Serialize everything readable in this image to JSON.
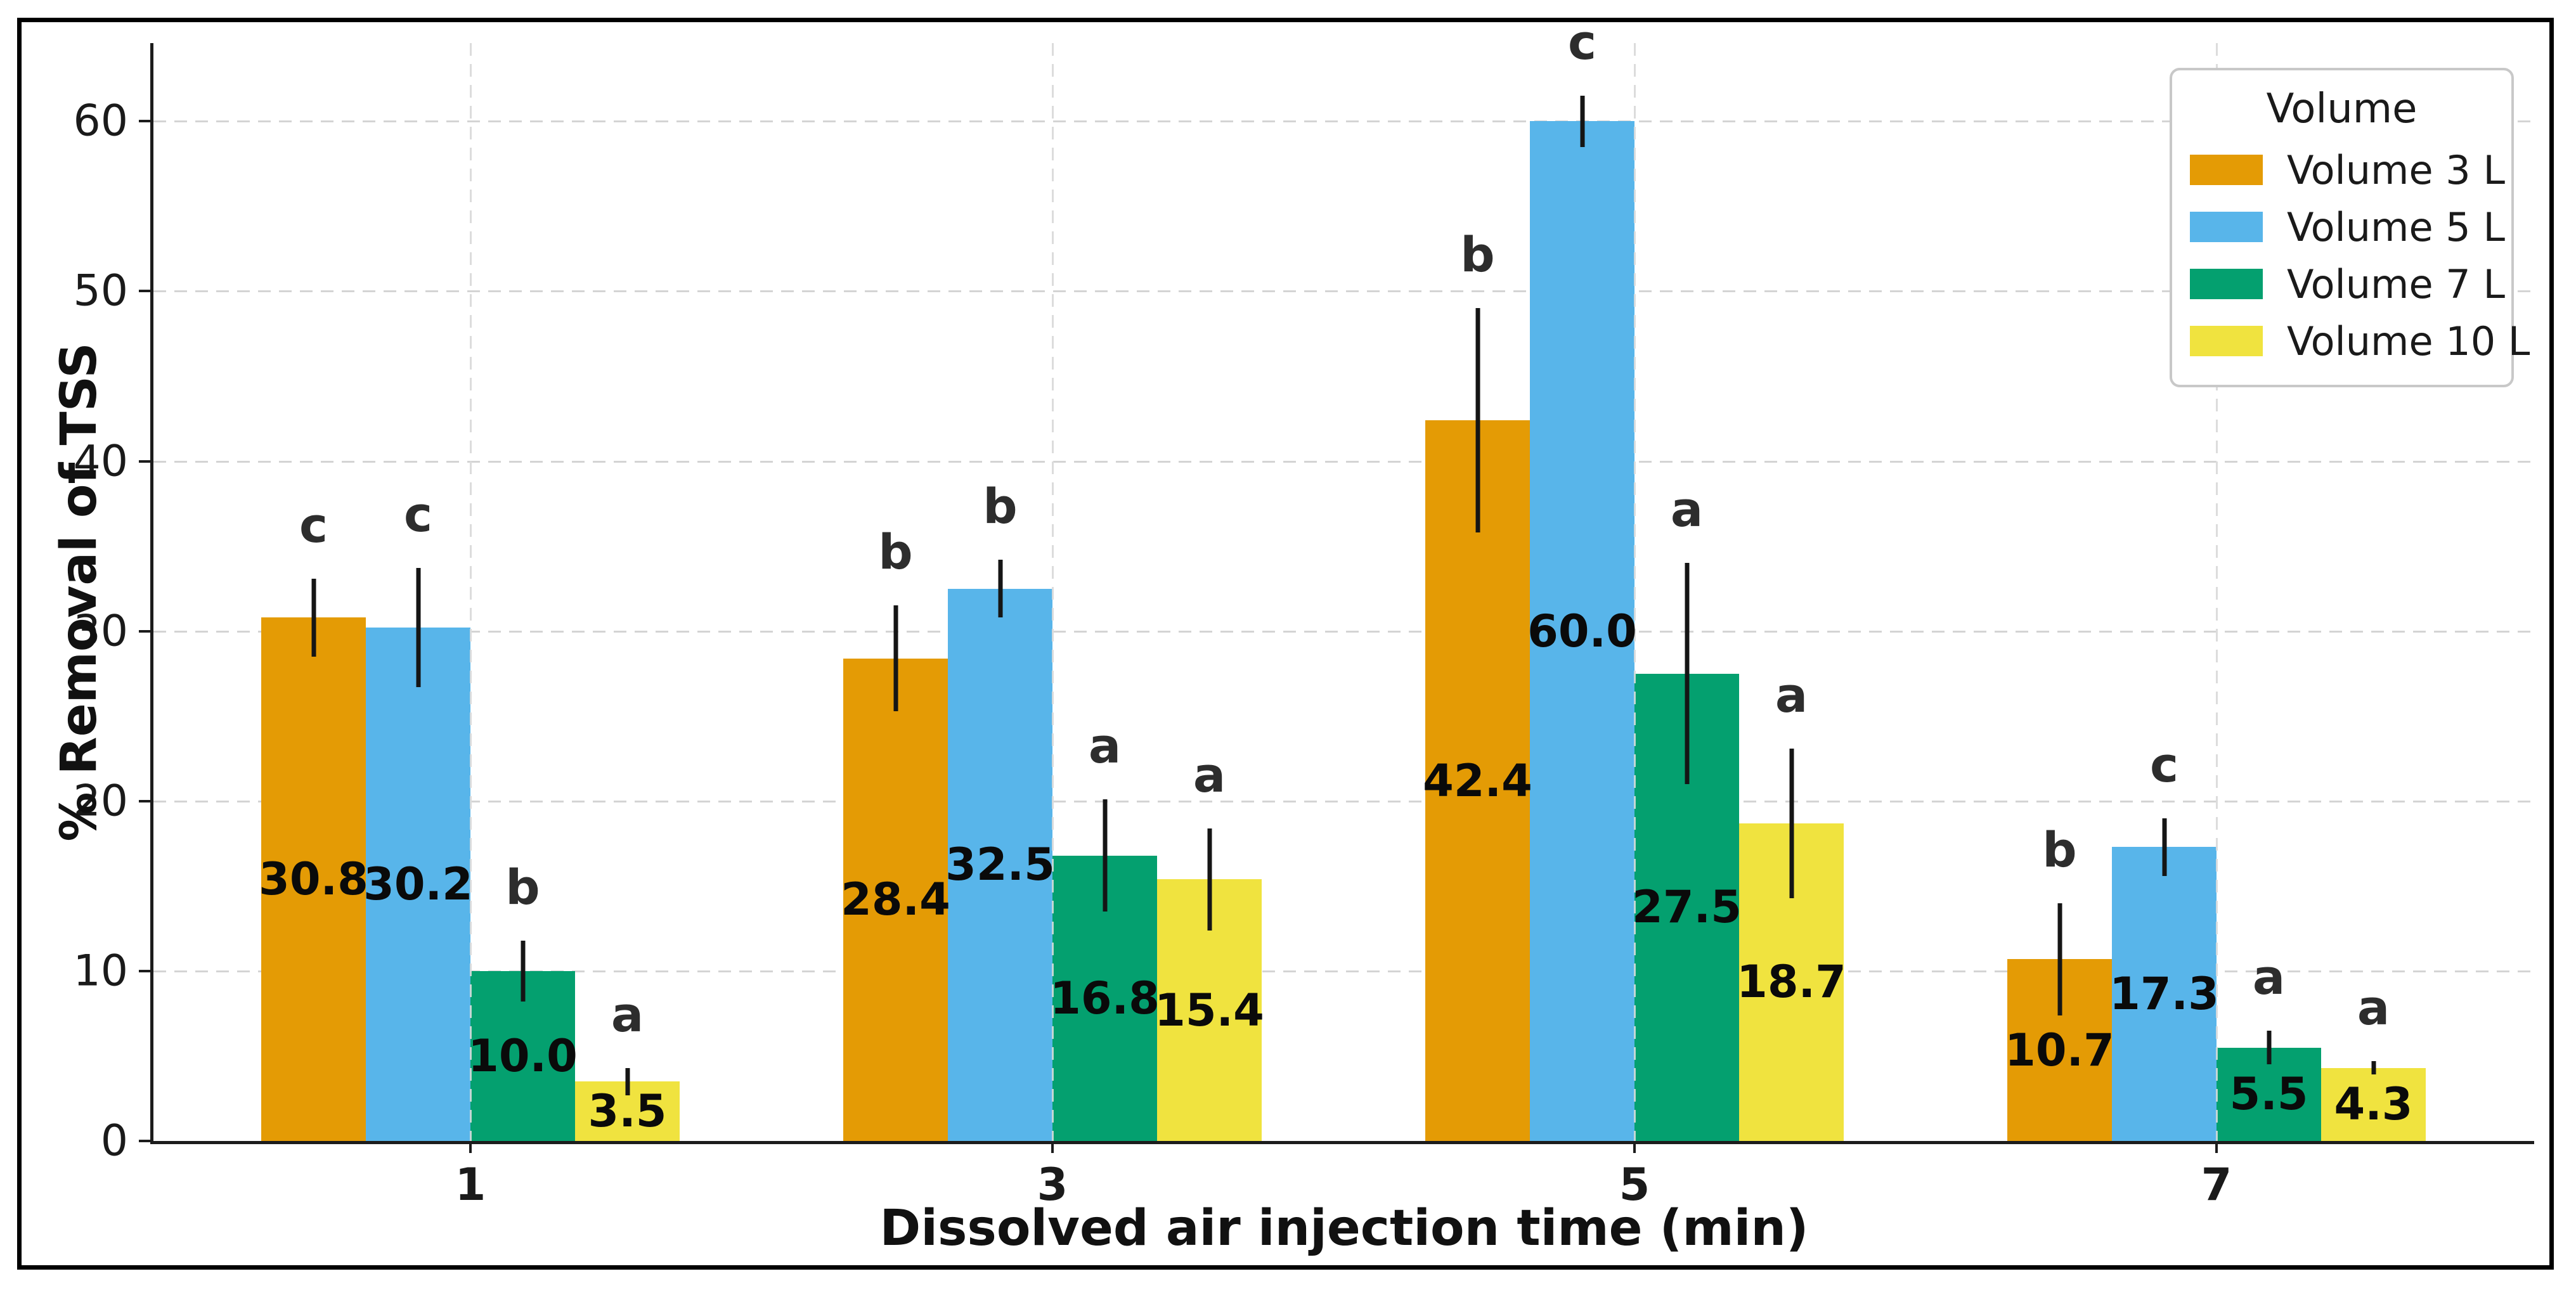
{
  "figure": {
    "background": "#ffffff",
    "frame_color": "#000000"
  },
  "chart_data": {
    "type": "bar",
    "title": "",
    "xlabel": "Dissolved air injection time (min)",
    "ylabel": "% Removal of TSS",
    "categories": [
      "1",
      "3",
      "5",
      "7"
    ],
    "series": [
      {
        "name": "Volume 3 L",
        "color": "#E49B05",
        "values": [
          30.8,
          28.4,
          42.4,
          10.7
        ],
        "errors": [
          2.3,
          3.1,
          6.6,
          3.3
        ],
        "letters": [
          "c",
          "b",
          "b",
          "b"
        ]
      },
      {
        "name": "Volume 5 L",
        "color": "#58B5EA",
        "values": [
          30.2,
          32.5,
          60.0,
          17.3
        ],
        "errors": [
          3.5,
          1.7,
          1.5,
          1.7
        ],
        "letters": [
          "c",
          "b",
          "c",
          "c"
        ]
      },
      {
        "name": "Volume 7 L",
        "color": "#04A06F",
        "values": [
          10.0,
          16.8,
          27.5,
          5.5
        ],
        "errors": [
          1.8,
          3.3,
          6.5,
          1.0
        ],
        "letters": [
          "b",
          "a",
          "a",
          "a"
        ]
      },
      {
        "name": "Volume 10 L",
        "color": "#F0E33F",
        "values": [
          3.5,
          15.4,
          18.7,
          4.3
        ],
        "errors": [
          0.8,
          3.0,
          4.4,
          0.4
        ],
        "letters": [
          "a",
          "a",
          "a",
          "a"
        ]
      }
    ],
    "yticks": [
      0,
      10,
      20,
      30,
      40,
      50,
      60
    ],
    "ylim": [
      0,
      64.6
    ],
    "grid": {
      "horizontal": true,
      "vertical": true,
      "style": "dashed",
      "color": "#d4d4d4"
    },
    "legend": {
      "title": "Volume",
      "position": "upper-right",
      "entries": [
        "Volume 3 L",
        "Volume 5 L",
        "Volume 7 L",
        "Volume 10 L"
      ]
    },
    "error_bar_color": "#151515",
    "value_label_decimals": 1
  }
}
